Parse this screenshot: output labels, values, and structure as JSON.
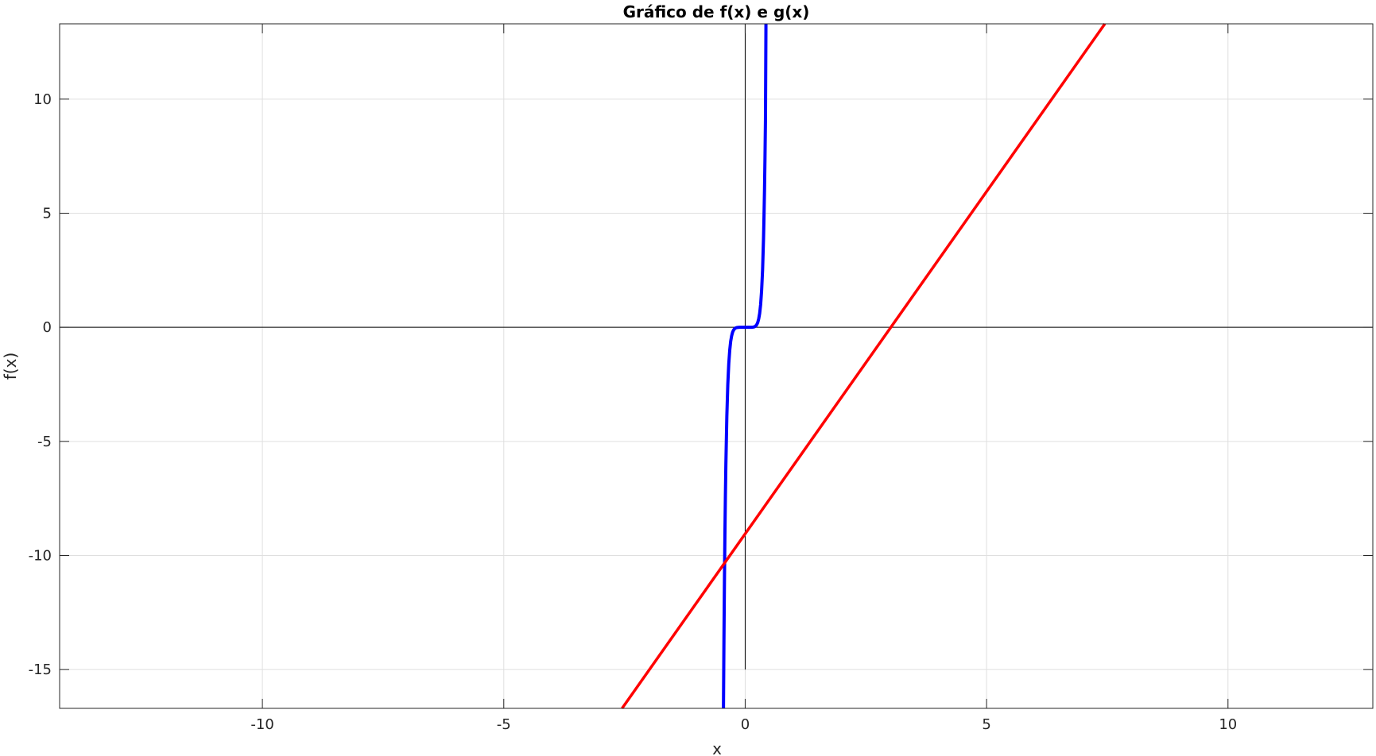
{
  "chart_data": {
    "type": "line",
    "title": "Gráfico de f(x) e g(x)",
    "xlabel": "x",
    "ylabel": "f(x)",
    "xlim": [
      -14.2,
      13.0
    ],
    "ylim": [
      -16.7,
      13.3
    ],
    "xticks": [
      -10,
      -5,
      0,
      5,
      10
    ],
    "yticks": [
      -15,
      -10,
      -5,
      0,
      5,
      10
    ],
    "xtick_labels": [
      "-10",
      "-5",
      "0",
      "5",
      "10"
    ],
    "ytick_labels": [
      "-15",
      "-10",
      "-5",
      "0",
      "5",
      "10"
    ],
    "grid": true,
    "reference_lines": {
      "horizontal_y": 0,
      "vertical_x": 0,
      "vertical_y_range": [
        -15,
        13.3
      ]
    },
    "series": [
      {
        "color": "#0000ff",
        "x": [
          -0.45,
          -0.44,
          -0.43,
          -0.42,
          -0.41,
          -0.4,
          -0.38,
          -0.36,
          -0.34,
          -0.32,
          -0.3,
          -0.28,
          -0.26,
          -0.24,
          -0.22,
          -0.2,
          -0.18,
          -0.16,
          -0.14,
          -0.12,
          -0.1,
          -0.08,
          -0.06,
          -0.04,
          -0.02,
          0.0,
          0.02,
          0.04,
          0.06,
          0.08,
          0.1,
          0.12,
          0.14,
          0.16,
          0.18,
          0.2,
          0.22,
          0.24,
          0.26,
          0.28,
          0.3,
          0.32,
          0.34,
          0.36,
          0.38,
          0.39,
          0.4,
          0.41,
          0.42,
          0.43
        ],
        "y": [
          -16.7,
          -13.7,
          -11.2,
          -9.1,
          -7.4,
          -6.0,
          -3.9,
          -2.5,
          -1.6,
          -1.0,
          -0.61,
          -0.37,
          -0.21,
          -0.12,
          -0.064,
          -0.032,
          -0.015,
          -0.0068,
          -0.0028,
          -0.001,
          -0.0003,
          -8e-05,
          -1e-05,
          0.0,
          0.0,
          0.0,
          0.0,
          0.0,
          1e-05,
          8e-05,
          0.0003,
          0.001,
          0.0028,
          0.0068,
          0.015,
          0.032,
          0.064,
          0.12,
          0.21,
          0.37,
          0.61,
          1.0,
          1.6,
          2.5,
          3.9,
          4.9,
          6.0,
          7.4,
          9.1,
          13.3
        ]
      },
      {
        "color": "#ff0000",
        "x": [
          -2.55,
          7.45
        ],
        "y": [
          -16.7,
          13.3
        ]
      }
    ]
  }
}
